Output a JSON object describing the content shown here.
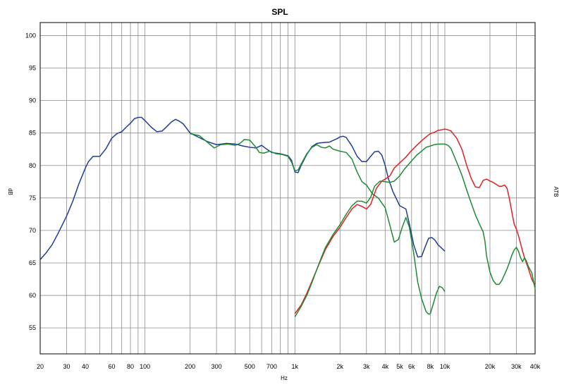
{
  "chart_data": {
    "type": "line",
    "title": "SPL",
    "xlabel": "Hz",
    "ylabel": "dB",
    "ylabel_right": "ATB",
    "x_scale": "log",
    "xlim": [
      20,
      40000
    ],
    "ylim": [
      51,
      102
    ],
    "grid": true,
    "x_ticks": [
      {
        "v": 20,
        "label": "20"
      },
      {
        "v": 30,
        "label": "30"
      },
      {
        "v": 40,
        "label": "40"
      },
      {
        "v": 60,
        "label": "60"
      },
      {
        "v": 80,
        "label": "80"
      },
      {
        "v": 100,
        "label": "100"
      },
      {
        "v": 200,
        "label": "200"
      },
      {
        "v": 300,
        "label": "300"
      },
      {
        "v": 500,
        "label": "500"
      },
      {
        "v": 700,
        "label": "700"
      },
      {
        "v": 1000,
        "label": "1k"
      },
      {
        "v": 2000,
        "label": "2k"
      },
      {
        "v": 3000,
        "label": "3k"
      },
      {
        "v": 4000,
        "label": "4k"
      },
      {
        "v": 5000,
        "label": "5k"
      },
      {
        "v": 6000,
        "label": "6k"
      },
      {
        "v": 8000,
        "label": "8k"
      },
      {
        "v": 10000,
        "label": "10k"
      },
      {
        "v": 20000,
        "label": "20k"
      },
      {
        "v": 30000,
        "label": "30k"
      },
      {
        "v": 40000,
        "label": "40k"
      }
    ],
    "y_ticks": [
      55,
      60,
      65,
      70,
      75,
      80,
      85,
      90,
      95,
      100
    ],
    "series": [
      {
        "color": "#1f3c96",
        "points": [
          [
            20,
            65.5
          ],
          [
            22,
            66.6
          ],
          [
            24,
            67.8
          ],
          [
            26,
            69.3
          ],
          [
            28,
            70.8
          ],
          [
            30,
            72.2
          ],
          [
            33,
            74.5
          ],
          [
            36,
            77.0
          ],
          [
            40,
            79.6
          ],
          [
            42,
            80.6
          ],
          [
            45,
            81.4
          ],
          [
            50,
            81.4
          ],
          [
            55,
            82.6
          ],
          [
            60,
            84.2
          ],
          [
            65,
            84.9
          ],
          [
            70,
            85.2
          ],
          [
            75,
            85.9
          ],
          [
            80,
            86.5
          ],
          [
            85,
            87.2
          ],
          [
            90,
            87.4
          ],
          [
            95,
            87.4
          ],
          [
            100,
            86.9
          ],
          [
            110,
            85.9
          ],
          [
            120,
            85.2
          ],
          [
            130,
            85.3
          ],
          [
            140,
            86.0
          ],
          [
            150,
            86.7
          ],
          [
            160,
            87.1
          ],
          [
            170,
            86.8
          ],
          [
            180,
            86.4
          ],
          [
            200,
            85.0
          ],
          [
            230,
            84.3
          ],
          [
            260,
            83.7
          ],
          [
            300,
            83.2
          ],
          [
            350,
            83.4
          ],
          [
            400,
            83.3
          ],
          [
            450,
            83.0
          ],
          [
            500,
            82.8
          ],
          [
            550,
            82.7
          ],
          [
            600,
            83.1
          ],
          [
            650,
            82.5
          ],
          [
            700,
            82.0
          ],
          [
            800,
            81.8
          ],
          [
            900,
            81.5
          ],
          [
            950,
            80.8
          ],
          [
            1000,
            79.0
          ],
          [
            1050,
            78.9
          ],
          [
            1100,
            80.0
          ],
          [
            1200,
            81.7
          ],
          [
            1300,
            82.9
          ],
          [
            1400,
            83.4
          ],
          [
            1500,
            83.5
          ],
          [
            1700,
            83.6
          ],
          [
            1900,
            84.1
          ],
          [
            2000,
            84.4
          ],
          [
            2100,
            84.5
          ],
          [
            2200,
            84.3
          ],
          [
            2400,
            83.0
          ],
          [
            2600,
            81.4
          ],
          [
            2800,
            80.6
          ],
          [
            3000,
            80.6
          ],
          [
            3200,
            81.4
          ],
          [
            3400,
            82.1
          ],
          [
            3600,
            82.2
          ],
          [
            3800,
            81.6
          ],
          [
            4000,
            80.0
          ],
          [
            4200,
            78.0
          ],
          [
            4500,
            76.0
          ],
          [
            5000,
            73.8
          ],
          [
            5500,
            73.3
          ],
          [
            5800,
            71.0
          ],
          [
            6200,
            67.8
          ],
          [
            6600,
            65.9
          ],
          [
            7000,
            66.0
          ],
          [
            7400,
            67.5
          ],
          [
            7800,
            68.8
          ],
          [
            8200,
            68.9
          ],
          [
            8600,
            68.5
          ],
          [
            9000,
            67.8
          ],
          [
            9500,
            67.3
          ],
          [
            10000,
            66.8
          ]
        ]
      },
      {
        "color": "#1e8a32",
        "points": [
          [
            200,
            84.9
          ],
          [
            230,
            84.6
          ],
          [
            260,
            83.6
          ],
          [
            290,
            82.7
          ],
          [
            320,
            83.2
          ],
          [
            360,
            83.3
          ],
          [
            400,
            83.1
          ],
          [
            430,
            83.4
          ],
          [
            460,
            84.0
          ],
          [
            500,
            83.9
          ],
          [
            540,
            83.0
          ],
          [
            580,
            82.0
          ],
          [
            620,
            81.9
          ],
          [
            680,
            82.2
          ],
          [
            750,
            81.8
          ],
          [
            820,
            81.7
          ],
          [
            900,
            81.4
          ],
          [
            950,
            80.5
          ],
          [
            1000,
            79.2
          ],
          [
            1050,
            79.3
          ],
          [
            1100,
            80.2
          ],
          [
            1200,
            81.8
          ],
          [
            1300,
            82.8
          ],
          [
            1400,
            83.2
          ],
          [
            1500,
            82.8
          ],
          [
            1600,
            82.7
          ],
          [
            1700,
            83.0
          ],
          [
            1800,
            82.5
          ],
          [
            2000,
            82.2
          ],
          [
            2200,
            82.0
          ],
          [
            2400,
            81.0
          ],
          [
            2600,
            79.0
          ],
          [
            2800,
            77.5
          ],
          [
            3000,
            77.0
          ],
          [
            3300,
            75.6
          ],
          [
            3600,
            75.0
          ],
          [
            4000,
            73.5
          ],
          [
            4300,
            70.8
          ],
          [
            4600,
            68.2
          ],
          [
            4900,
            68.6
          ],
          [
            5200,
            70.5
          ],
          [
            5500,
            72.0
          ],
          [
            5800,
            70.5
          ],
          [
            6200,
            66.5
          ],
          [
            6600,
            62.0
          ],
          [
            7000,
            59.5
          ],
          [
            7500,
            57.5
          ],
          [
            7800,
            57.1
          ],
          [
            8000,
            57.2
          ],
          [
            8400,
            58.8
          ],
          [
            8800,
            60.4
          ],
          [
            9200,
            61.4
          ],
          [
            9600,
            61.2
          ],
          [
            10000,
            60.6
          ]
        ]
      },
      {
        "color": "#e02020",
        "points": [
          [
            1000,
            57.2
          ],
          [
            1100,
            58.5
          ],
          [
            1200,
            60.3
          ],
          [
            1300,
            62.2
          ],
          [
            1400,
            64.0
          ],
          [
            1500,
            65.6
          ],
          [
            1600,
            67.1
          ],
          [
            1800,
            69.1
          ],
          [
            2000,
            70.5
          ],
          [
            2200,
            72.0
          ],
          [
            2400,
            73.3
          ],
          [
            2600,
            74.0
          ],
          [
            2800,
            73.7
          ],
          [
            3000,
            73.3
          ],
          [
            3200,
            74.0
          ],
          [
            3500,
            76.5
          ],
          [
            3800,
            77.6
          ],
          [
            4000,
            77.9
          ],
          [
            4300,
            78.4
          ],
          [
            4600,
            79.6
          ],
          [
            5000,
            80.4
          ],
          [
            5500,
            81.3
          ],
          [
            6000,
            82.3
          ],
          [
            6500,
            83.1
          ],
          [
            7000,
            83.8
          ],
          [
            7500,
            84.4
          ],
          [
            8000,
            84.9
          ],
          [
            8500,
            85.1
          ],
          [
            9000,
            85.4
          ],
          [
            9500,
            85.5
          ],
          [
            10000,
            85.6
          ],
          [
            10500,
            85.5
          ],
          [
            11000,
            85.3
          ],
          [
            12000,
            84.2
          ],
          [
            13000,
            82.5
          ],
          [
            14000,
            80.0
          ],
          [
            15000,
            78.0
          ],
          [
            16000,
            76.7
          ],
          [
            17000,
            76.6
          ],
          [
            18000,
            77.7
          ],
          [
            19000,
            77.9
          ],
          [
            20000,
            77.6
          ],
          [
            21000,
            77.4
          ],
          [
            22000,
            77.1
          ],
          [
            23000,
            76.8
          ],
          [
            24000,
            76.8
          ],
          [
            25000,
            77.0
          ],
          [
            26000,
            76.5
          ],
          [
            27000,
            74.8
          ],
          [
            28000,
            72.8
          ],
          [
            29000,
            71.0
          ],
          [
            30000,
            70.2
          ],
          [
            31000,
            69.2
          ],
          [
            32000,
            68.0
          ],
          [
            33000,
            66.8
          ],
          [
            34000,
            65.8
          ],
          [
            35000,
            65.0
          ],
          [
            36000,
            64.2
          ],
          [
            38000,
            62.5
          ],
          [
            40000,
            61.5
          ]
        ]
      },
      {
        "color": "#1e8a32",
        "points": [
          [
            1000,
            56.7
          ],
          [
            1100,
            58.3
          ],
          [
            1200,
            60.0
          ],
          [
            1300,
            62.0
          ],
          [
            1400,
            64.0
          ],
          [
            1500,
            65.8
          ],
          [
            1600,
            67.4
          ],
          [
            1800,
            69.4
          ],
          [
            2000,
            70.9
          ],
          [
            2200,
            72.5
          ],
          [
            2400,
            73.8
          ],
          [
            2600,
            74.5
          ],
          [
            2800,
            74.5
          ],
          [
            3000,
            74.2
          ],
          [
            3200,
            75.1
          ],
          [
            3400,
            76.8
          ],
          [
            3700,
            77.6
          ],
          [
            4000,
            77.5
          ],
          [
            4300,
            77.4
          ],
          [
            4600,
            77.6
          ],
          [
            5000,
            78.4
          ],
          [
            5400,
            79.5
          ],
          [
            6000,
            80.7
          ],
          [
            6500,
            81.6
          ],
          [
            7000,
            82.2
          ],
          [
            7500,
            82.8
          ],
          [
            8000,
            83.0
          ],
          [
            8500,
            83.2
          ],
          [
            9000,
            83.3
          ],
          [
            9500,
            83.3
          ],
          [
            10000,
            83.3
          ],
          [
            10500,
            83.1
          ],
          [
            11000,
            82.6
          ],
          [
            12000,
            80.5
          ],
          [
            13000,
            78.5
          ],
          [
            14000,
            76.2
          ],
          [
            15000,
            74.2
          ],
          [
            16000,
            72.4
          ],
          [
            17000,
            71.0
          ],
          [
            18000,
            69.8
          ],
          [
            18500,
            68.4
          ],
          [
            19000,
            66.0
          ],
          [
            20000,
            63.6
          ],
          [
            21000,
            62.3
          ],
          [
            22000,
            61.7
          ],
          [
            23000,
            61.7
          ],
          [
            24000,
            62.3
          ],
          [
            25000,
            63.2
          ],
          [
            26000,
            64.1
          ],
          [
            27000,
            65.1
          ],
          [
            28000,
            66.2
          ],
          [
            29000,
            67.0
          ],
          [
            30000,
            67.4
          ],
          [
            31000,
            66.8
          ],
          [
            32000,
            65.8
          ],
          [
            33000,
            65.2
          ],
          [
            34000,
            65.8
          ],
          [
            35000,
            65.3
          ],
          [
            36000,
            64.5
          ],
          [
            38000,
            63.5
          ],
          [
            40000,
            61.0
          ]
        ]
      }
    ]
  }
}
